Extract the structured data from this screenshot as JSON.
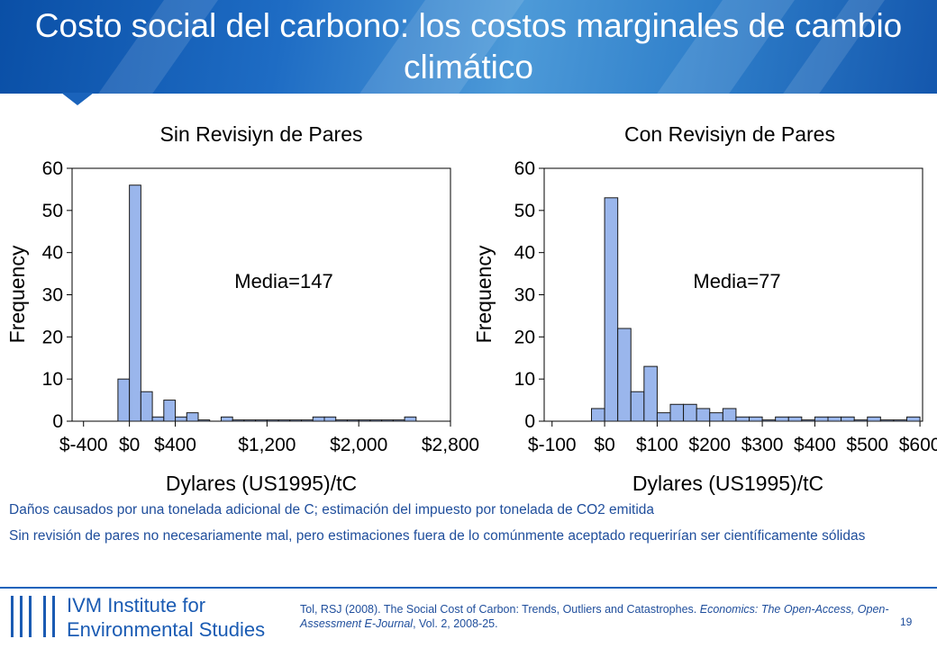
{
  "slide": {
    "title": "Costo social del carbono: los costos marginales de cambio climático",
    "page_number": "19"
  },
  "logo": {
    "line1": "IVM Institute for",
    "line2": "Environmental Studies"
  },
  "notes": [
    "Daños causados por una tonelada adicional de C; estimación del impuesto por tonelada de CO2 emitida",
    "Sin revisión de pares no necesariamente mal, pero estimaciones fuera de lo comúnmente aceptado requerirían ser científicamente sólidas"
  ],
  "citation": {
    "part1": "Tol, RSJ (2008). The Social Cost of Carbon: Trends, Outliers and Catastrophes. ",
    "journal": "Economics: The Open-Access, Open-Assessment E-Journal",
    "part2": ", Vol. 2, 2008-25."
  },
  "colors": {
    "bar_fill": "#9ab6ec",
    "bar_stroke": "#1a1a1a",
    "accent": "#1a63bb",
    "text_blue": "#1f4e9c"
  },
  "chart_data": [
    {
      "type": "bar",
      "title": "Sin Revisiyn de Pares",
      "xlabel": "Dylares (US1995)/tC",
      "ylabel": "Frequency",
      "annotation": "Media=147",
      "xlim": [
        -500,
        2800
      ],
      "ylim": [
        0,
        60
      ],
      "yticks": [
        0,
        10,
        20,
        30,
        40,
        50,
        60
      ],
      "xticks": [
        -400,
        0,
        400,
        1200,
        2000,
        2800
      ],
      "xtick_labels": [
        "$-400",
        "$0",
        "$400",
        "$1,200",
        "$2,000",
        "$2,800"
      ],
      "bin_width": 100,
      "bins_start": [
        -100,
        0,
        100,
        200,
        300,
        400,
        500,
        600,
        700,
        800,
        900,
        1000,
        1100,
        1200,
        1300,
        1400,
        1500,
        1600,
        1700,
        1800,
        1900,
        2000,
        2100,
        2200,
        2300,
        2400
      ],
      "values": [
        10,
        56,
        7,
        1,
        5,
        1,
        2,
        0.3,
        0,
        1,
        0.3,
        0.3,
        0.3,
        0.3,
        0.3,
        0.3,
        0.3,
        1,
        1,
        0.3,
        0.3,
        0.3,
        0.3,
        0.3,
        0.3,
        1
      ]
    },
    {
      "type": "bar",
      "title": "Con Revisiyn de Pares",
      "xlabel": "Dylares (US1995)/tC",
      "ylabel": "Frequency",
      "annotation": "Media=77",
      "xlim": [
        -115,
        605
      ],
      "ylim": [
        0,
        60
      ],
      "yticks": [
        0,
        10,
        20,
        30,
        40,
        50,
        60
      ],
      "xticks": [
        -100,
        0,
        100,
        200,
        300,
        400,
        500,
        600
      ],
      "xtick_labels": [
        "$-100",
        "$0",
        "$100",
        "$200",
        "$300",
        "$400",
        "$500",
        "$600"
      ],
      "bin_width": 25,
      "bins_start": [
        -25,
        0,
        25,
        50,
        75,
        100,
        125,
        150,
        175,
        200,
        225,
        250,
        275,
        300,
        325,
        350,
        375,
        400,
        425,
        450,
        475,
        500,
        525,
        550,
        575
      ],
      "values": [
        3,
        53,
        22,
        7,
        13,
        2,
        4,
        4,
        3,
        2,
        3,
        1,
        1,
        0.3,
        1,
        1,
        0.3,
        1,
        1,
        1,
        0.3,
        1,
        0.3,
        0.3,
        1
      ]
    }
  ]
}
